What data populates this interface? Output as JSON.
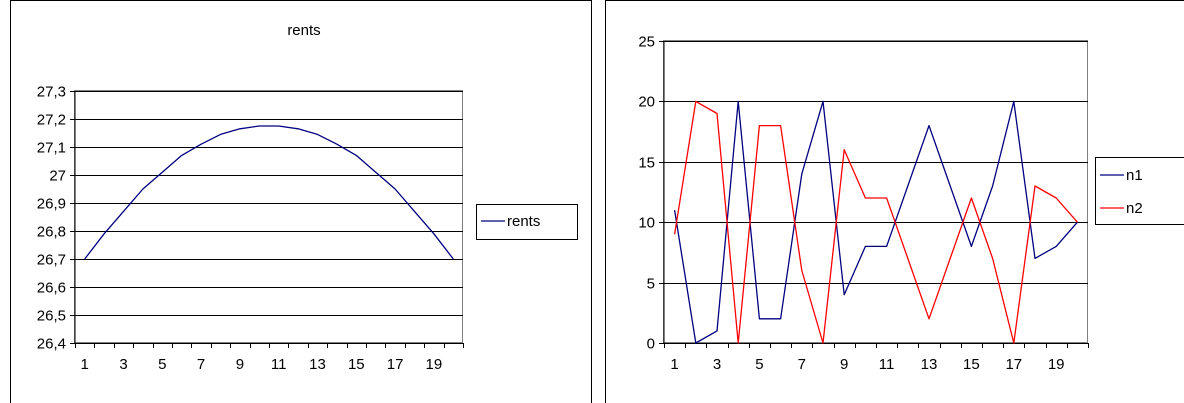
{
  "chart_data": [
    {
      "type": "line",
      "title": "rents",
      "xlabel": "",
      "ylabel": "",
      "x": [
        1,
        2,
        3,
        4,
        5,
        6,
        7,
        8,
        9,
        10,
        11,
        12,
        13,
        14,
        15,
        16,
        17,
        18,
        19,
        20
      ],
      "x_tick_labels": [
        "1",
        "3",
        "5",
        "7",
        "9",
        "11",
        "13",
        "15",
        "17",
        "19"
      ],
      "y_tick_labels": [
        "26,4",
        "26,5",
        "26,6",
        "26,7",
        "26,8",
        "26,9",
        "27",
        "27,1",
        "27,2",
        "27,3"
      ],
      "ylim": [
        26.4,
        27.3
      ],
      "grid": true,
      "legend_position": "right",
      "series": [
        {
          "name": "rents",
          "color": "#000080",
          "values": [
            26.7,
            26.79,
            26.87,
            26.95,
            27.01,
            27.07,
            27.11,
            27.145,
            27.165,
            27.175,
            27.175,
            27.165,
            27.145,
            27.11,
            27.07,
            27.01,
            26.95,
            26.87,
            26.79,
            26.7
          ]
        }
      ]
    },
    {
      "type": "line",
      "title": "",
      "xlabel": "",
      "ylabel": "",
      "x": [
        1,
        2,
        3,
        4,
        5,
        6,
        7,
        8,
        9,
        10,
        11,
        12,
        13,
        14,
        15,
        16,
        17,
        18,
        19,
        20
      ],
      "x_tick_labels": [
        "1",
        "3",
        "5",
        "7",
        "9",
        "11",
        "13",
        "15",
        "17",
        "19"
      ],
      "y_tick_labels": [
        "0",
        "5",
        "10",
        "15",
        "20",
        "25"
      ],
      "ylim": [
        0,
        25
      ],
      "grid": true,
      "legend_position": "right",
      "series": [
        {
          "name": "n1",
          "color": "#000080",
          "values": [
            11,
            0,
            1,
            20,
            2,
            2,
            14,
            20,
            4,
            8,
            8,
            13,
            18,
            13,
            8,
            13,
            20,
            7,
            8,
            10
          ]
        },
        {
          "name": "n2",
          "color": "#ff0000",
          "values": [
            9,
            20,
            19,
            0,
            18,
            18,
            6,
            0,
            16,
            12,
            12,
            7,
            2,
            7,
            12,
            7,
            0,
            13,
            12,
            10
          ]
        }
      ]
    }
  ]
}
